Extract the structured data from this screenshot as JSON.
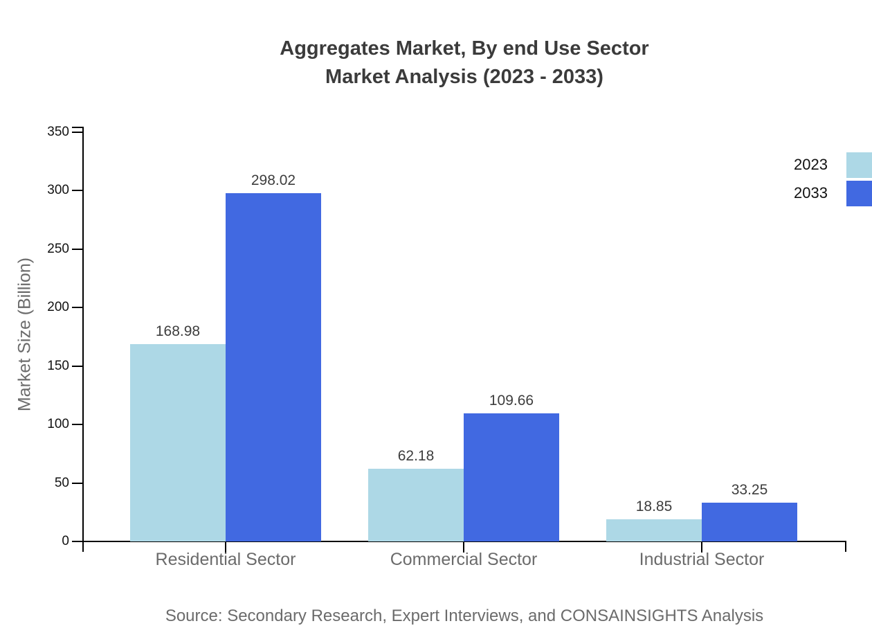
{
  "title": {
    "line1": "Aggregates Market, By end Use Sector",
    "line2": "Market Analysis (2023 - 2033)"
  },
  "source": "Source: Secondary Research, Expert Interviews, and CONSAINSIGHTS Analysis",
  "colors": {
    "series_2023": "#ADD8E6",
    "series_2033": "#4169E1",
    "axis": "#000000",
    "title_text": "#3b3b3b",
    "muted_text": "#6b6b6b",
    "value_label_text": "#3d3d3d"
  },
  "legend": {
    "position": "top-right",
    "items": [
      {
        "label": "2023",
        "color": "#ADD8E6"
      },
      {
        "label": "2033",
        "color": "#4169E1"
      }
    ]
  },
  "chart_data": {
    "type": "bar",
    "title": "Aggregates Market, By end Use Sector Market Analysis (2023 - 2033)",
    "categories": [
      "Residential Sector",
      "Commercial Sector",
      "Industrial Sector"
    ],
    "series": [
      {
        "name": "2023",
        "color": "#ADD8E6",
        "values": [
          168.98,
          62.18,
          18.85
        ]
      },
      {
        "name": "2033",
        "color": "#4169E1",
        "values": [
          298.02,
          109.66,
          33.25
        ]
      }
    ],
    "value_labels": {
      "2023": [
        "168.98",
        "62.18",
        "18.85"
      ],
      "2033": [
        "298.02",
        "109.66",
        "33.25"
      ]
    },
    "xlabel": "",
    "ylabel": "Market Size (Billion)",
    "ylim": [
      0,
      350
    ],
    "yticks": [
      0,
      50,
      100,
      150,
      200,
      250,
      300,
      350
    ],
    "grid": false,
    "legend_position": "top-right"
  }
}
